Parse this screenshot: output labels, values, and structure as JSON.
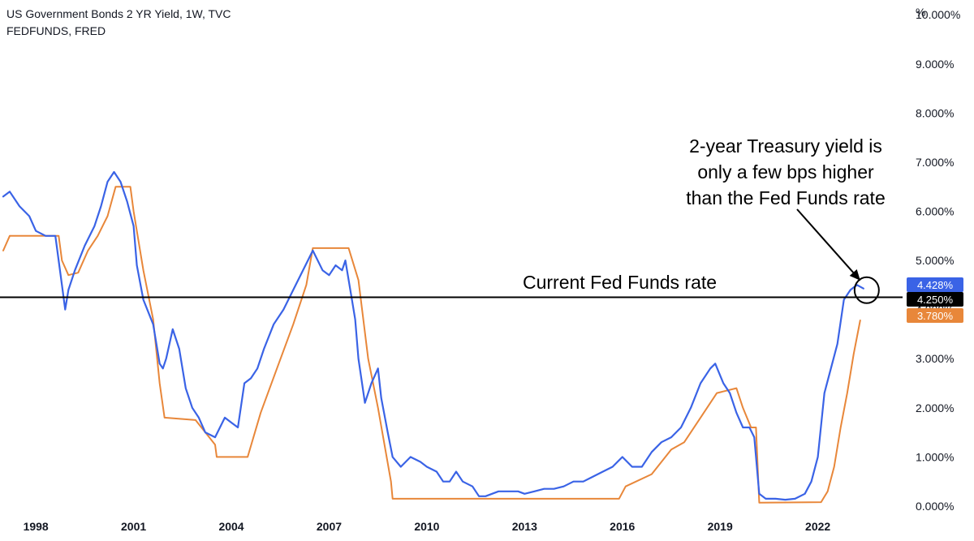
{
  "header": {
    "title_line1": "US Government Bonds 2 YR Yield, 1W, TVC",
    "title_line2": "FEDFUNDS, FRED"
  },
  "axis": {
    "unit": "%",
    "y_tick_labels": [
      "0.000%",
      "1.000%",
      "2.000%",
      "3.000%",
      "4.000%",
      "5.000%",
      "6.000%",
      "7.000%",
      "8.000%",
      "9.000%",
      "10.000%"
    ],
    "x_tick_labels": [
      "1998",
      "2001",
      "2004",
      "2007",
      "2010",
      "2013",
      "2016",
      "2019",
      "2022"
    ]
  },
  "badges": [
    {
      "label": "4.428%",
      "color": "#3a63e6"
    },
    {
      "label": "4.250%",
      "color": "#000000"
    },
    {
      "label": "3.780%",
      "color": "#e8873a"
    }
  ],
  "annotations": {
    "current_rate_label": "Current Fed Funds rate",
    "callout_lines": [
      "2-year Treasury yield is",
      "only a few bps higher",
      "than the Fed Funds rate"
    ]
  },
  "colors": {
    "yield_line": "#3a63e6",
    "fedfunds_line": "#e8873a",
    "reference_line": "#000000"
  },
  "chart_data": {
    "type": "line",
    "title": "US Government Bonds 2 YR Yield, 1W, TVC",
    "xlabel": "",
    "ylabel": "%",
    "ylim": [
      -0.1,
      10.3
    ],
    "xlim": [
      1996.9,
      2024.6
    ],
    "grid": false,
    "horizontal_line": {
      "y": 4.25,
      "label": "Current Fed Funds rate"
    },
    "series": [
      {
        "name": "US Government Bonds 2 YR Yield, 1W, TVC",
        "color": "#3a63e6",
        "x": [
          1997.0,
          1997.2,
          1997.5,
          1997.8,
          1998.0,
          1998.3,
          1998.6,
          1998.8,
          1998.9,
          1999.0,
          1999.2,
          1999.5,
          1999.8,
          2000.0,
          2000.2,
          2000.4,
          2000.6,
          2000.8,
          2001.0,
          2001.1,
          2001.3,
          2001.6,
          2001.8,
          2001.9,
          2002.0,
          2002.2,
          2002.4,
          2002.6,
          2002.8,
          2003.0,
          2003.2,
          2003.5,
          2003.8,
          2004.0,
          2004.2,
          2004.4,
          2004.6,
          2004.8,
          2005.0,
          2005.3,
          2005.6,
          2005.9,
          2006.2,
          2006.5,
          2006.8,
          2007.0,
          2007.2,
          2007.4,
          2007.5,
          2007.7,
          2007.8,
          2007.9,
          2008.1,
          2008.3,
          2008.5,
          2008.6,
          2008.8,
          2008.95,
          2009.2,
          2009.5,
          2009.8,
          2010.0,
          2010.3,
          2010.5,
          2010.7,
          2010.9,
          2011.1,
          2011.4,
          2011.6,
          2011.8,
          2012.2,
          2012.5,
          2012.8,
          2013.0,
          2013.3,
          2013.6,
          2013.9,
          2014.2,
          2014.5,
          2014.8,
          2015.1,
          2015.4,
          2015.7,
          2016.0,
          2016.3,
          2016.6,
          2016.9,
          2017.2,
          2017.5,
          2017.8,
          2018.1,
          2018.4,
          2018.7,
          2018.85,
          2019.1,
          2019.3,
          2019.5,
          2019.7,
          2019.9,
          2020.05,
          2020.2,
          2020.4,
          2020.7,
          2021.0,
          2021.3,
          2021.6,
          2021.8,
          2022.0,
          2022.2,
          2022.4,
          2022.6,
          2022.8,
          2023.0,
          2023.2,
          2023.4
        ],
        "values": [
          6.3,
          6.4,
          6.1,
          5.9,
          5.6,
          5.5,
          5.5,
          4.5,
          4.0,
          4.4,
          4.8,
          5.3,
          5.7,
          6.1,
          6.6,
          6.8,
          6.6,
          6.2,
          5.7,
          4.9,
          4.2,
          3.7,
          2.9,
          2.8,
          3.0,
          3.6,
          3.2,
          2.4,
          2.0,
          1.8,
          1.5,
          1.4,
          1.8,
          1.7,
          1.6,
          2.5,
          2.6,
          2.8,
          3.2,
          3.7,
          4.0,
          4.4,
          4.8,
          5.2,
          4.8,
          4.7,
          4.9,
          4.8,
          5.0,
          4.2,
          3.8,
          3.0,
          2.1,
          2.5,
          2.8,
          2.2,
          1.5,
          1.0,
          0.8,
          1.0,
          0.9,
          0.8,
          0.7,
          0.5,
          0.5,
          0.7,
          0.5,
          0.4,
          0.2,
          0.2,
          0.3,
          0.3,
          0.3,
          0.25,
          0.3,
          0.35,
          0.35,
          0.4,
          0.5,
          0.5,
          0.6,
          0.7,
          0.8,
          1.0,
          0.8,
          0.8,
          1.1,
          1.3,
          1.4,
          1.6,
          2.0,
          2.5,
          2.8,
          2.9,
          2.5,
          2.3,
          1.9,
          1.6,
          1.6,
          1.4,
          0.25,
          0.15,
          0.15,
          0.13,
          0.15,
          0.25,
          0.5,
          1.0,
          2.3,
          2.8,
          3.3,
          4.2,
          4.4,
          4.5,
          4.428
        ]
      },
      {
        "name": "FEDFUNDS, FRED",
        "color": "#e8873a",
        "x": [
          1997.0,
          1997.2,
          1998.0,
          1998.7,
          1998.8,
          1999.0,
          1999.3,
          1999.6,
          1999.9,
          2000.2,
          2000.45,
          2000.9,
          2001.0,
          2001.3,
          2001.6,
          2001.8,
          2001.95,
          2002.9,
          2003.5,
          2003.55,
          2004.5,
          2004.9,
          2005.4,
          2005.9,
          2006.3,
          2006.5,
          2007.6,
          2007.9,
          2008.2,
          2008.5,
          2008.9,
          2008.95,
          2015.9,
          2016.1,
          2016.9,
          2017.5,
          2017.9,
          2018.4,
          2018.9,
          2019.5,
          2019.7,
          2019.95,
          2020.1,
          2020.2,
          2022.1,
          2022.3,
          2022.5,
          2022.7,
          2022.9,
          2023.1,
          2023.3
        ],
        "values": [
          5.2,
          5.5,
          5.5,
          5.5,
          5.0,
          4.7,
          4.75,
          5.2,
          5.5,
          5.9,
          6.5,
          6.5,
          6.0,
          4.8,
          3.8,
          2.5,
          1.8,
          1.75,
          1.25,
          1.0,
          1.0,
          1.9,
          2.8,
          3.7,
          4.5,
          5.25,
          5.25,
          4.6,
          3.0,
          2.0,
          0.5,
          0.15,
          0.15,
          0.4,
          0.65,
          1.15,
          1.3,
          1.8,
          2.3,
          2.4,
          2.0,
          1.6,
          1.6,
          0.07,
          0.08,
          0.3,
          0.8,
          1.6,
          2.3,
          3.1,
          3.78
        ]
      }
    ]
  }
}
